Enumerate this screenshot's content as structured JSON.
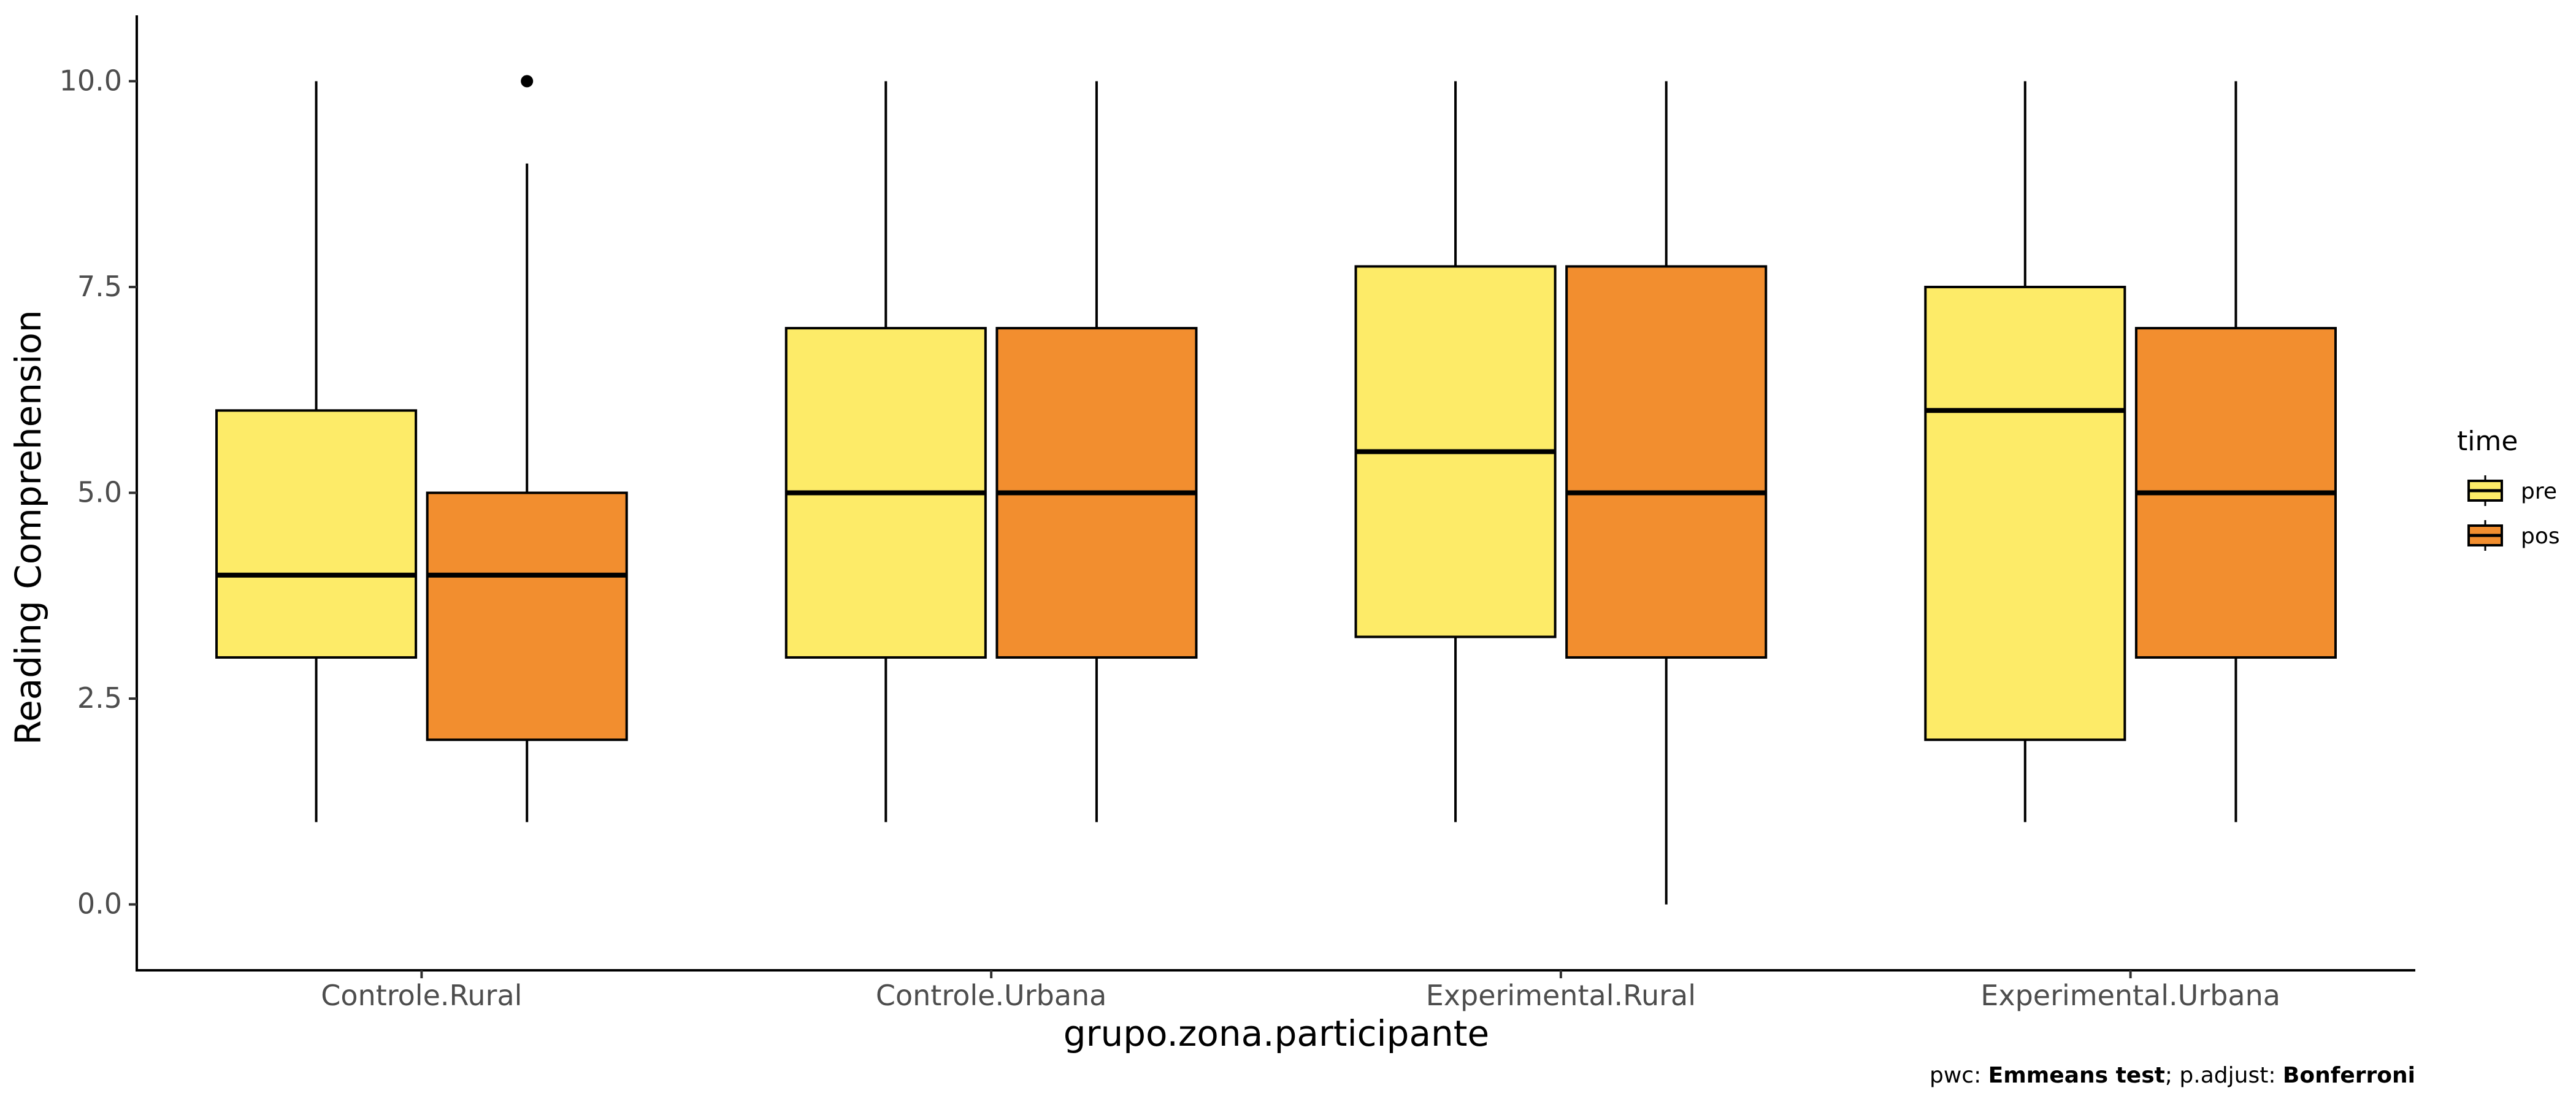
{
  "chart_data": {
    "type": "boxplot",
    "xlabel": "grupo.zona.participante",
    "ylabel": "Reading Comprehension",
    "ylim": [
      -0.8,
      10.8
    ],
    "yticks": [
      0.0,
      2.5,
      5.0,
      7.5,
      10.0
    ],
    "ytick_labels": [
      "0.0",
      "2.5",
      "5.0",
      "7.5",
      "10.0"
    ],
    "categories": [
      "Controle.Rural",
      "Controle.Urbana",
      "Experimental.Rural",
      "Experimental.Urbana"
    ],
    "legend": {
      "title": "time",
      "position": "right",
      "entries": [
        {
          "name": "pre",
          "color": "#FDEB68"
        },
        {
          "name": "pos",
          "color": "#F28E2F"
        }
      ]
    },
    "series": [
      {
        "name": "pre",
        "color": "#FDEB68",
        "boxes": [
          {
            "min": 1,
            "q1": 3,
            "median": 4,
            "q3": 6,
            "max": 10,
            "outliers": []
          },
          {
            "min": 1,
            "q1": 3,
            "median": 5,
            "q3": 7,
            "max": 10,
            "outliers": []
          },
          {
            "min": 1,
            "q1": 3.25,
            "median": 5.5,
            "q3": 7.75,
            "max": 10,
            "outliers": []
          },
          {
            "min": 1,
            "q1": 2,
            "median": 6,
            "q3": 7.5,
            "max": 10,
            "outliers": []
          }
        ]
      },
      {
        "name": "pos",
        "color": "#F28E2F",
        "boxes": [
          {
            "min": 1,
            "q1": 2,
            "median": 4,
            "q3": 5,
            "max": 9,
            "outliers": [
              10
            ]
          },
          {
            "min": 1,
            "q1": 3,
            "median": 5,
            "q3": 7,
            "max": 10,
            "outliers": []
          },
          {
            "min": 0,
            "q1": 3,
            "median": 5,
            "q3": 7.75,
            "max": 10,
            "outliers": []
          },
          {
            "min": 1,
            "q1": 3,
            "median": 5,
            "q3": 7,
            "max": 10,
            "outliers": []
          }
        ]
      }
    ],
    "grid": false,
    "caption": {
      "prefix": "pwc: ",
      "test": "Emmeans test",
      "middle": "; p.adjust: ",
      "method": "Bonferroni"
    }
  }
}
